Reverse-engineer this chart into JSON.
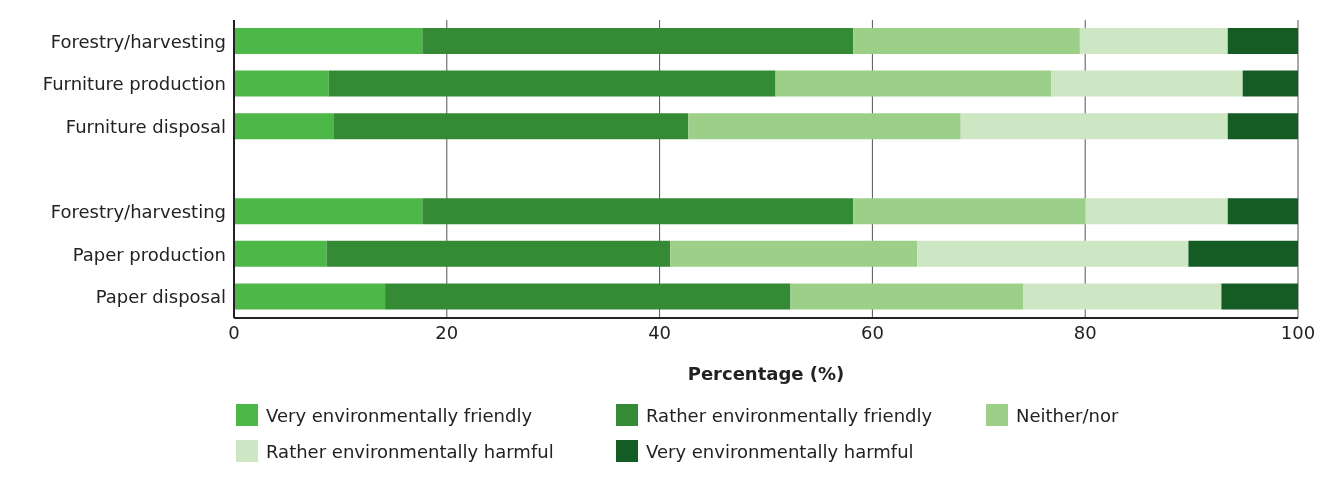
{
  "chart_data": {
    "type": "bar",
    "orientation": "horizontal",
    "stacked": true,
    "xlabel": "Percentage (%)",
    "categories": [
      "Forestry/harvesting",
      "Furniture production",
      "Furniture disposal",
      null,
      "Forestry/harvesting",
      "Paper production",
      "Paper disposal"
    ],
    "series": [
      {
        "name": "Very environmentally friendly",
        "color": "#4db848",
        "values": [
          17.7,
          8.9,
          9.4,
          null,
          17.7,
          8.7,
          14.2
        ]
      },
      {
        "name": "Rather environmentally friendly",
        "color": "#358a36",
        "values": [
          40.5,
          42,
          33.3,
          null,
          40.5,
          32.3,
          38.1
        ]
      },
      {
        "name": "Neither/nor",
        "color": "#9ccf88",
        "values": [
          21.3,
          25.9,
          25.6,
          null,
          21.8,
          23.2,
          21.9
        ]
      },
      {
        "name": "Rather environmentally harmful",
        "color": "#cde6c4",
        "values": [
          13.9,
          18,
          25.1,
          null,
          13.4,
          25.5,
          18.6
        ]
      },
      {
        "name": "Very environmentally harmful",
        "color": "#145c24",
        "values": [
          6.6,
          5.2,
          6.6,
          null,
          6.6,
          10.3,
          7.2
        ]
      }
    ],
    "xlim": [
      0,
      100
    ],
    "xticks": [
      0,
      20,
      40,
      60,
      80,
      100
    ],
    "grid": "x",
    "legend": "bottom"
  }
}
